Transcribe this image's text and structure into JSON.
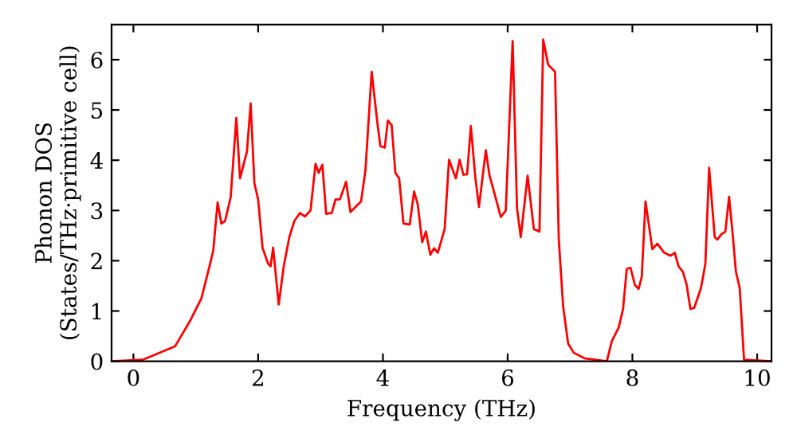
{
  "chart_data": {
    "type": "line",
    "xlabel": "Frequency (THz)",
    "ylabel": "Phonon DOS\n(States/THz·primitive cell)",
    "xlim": [
      -0.35,
      10.23
    ],
    "ylim": [
      0,
      6.7
    ],
    "xticks": [
      0,
      2,
      4,
      6,
      8,
      10
    ],
    "yticks": [
      0,
      1,
      2,
      3,
      4,
      5,
      6
    ],
    "marker": "none",
    "line_style": "solid",
    "series": [
      {
        "color": "#ff0000",
        "x": [
          -0.35,
          0.15,
          0.67,
          0.92,
          1.09,
          1.22,
          1.28,
          1.35,
          1.41,
          1.47,
          1.56,
          1.65,
          1.71,
          1.82,
          1.88,
          1.94,
          2.0,
          2.07,
          2.16,
          2.2,
          2.24,
          2.33,
          2.41,
          2.5,
          2.58,
          2.67,
          2.75,
          2.84,
          2.92,
          2.97,
          3.03,
          3.09,
          3.18,
          3.24,
          3.31,
          3.41,
          3.48,
          3.65,
          3.72,
          3.82,
          3.91,
          3.96,
          4.03,
          4.08,
          4.14,
          4.2,
          4.26,
          4.33,
          4.43,
          4.5,
          4.56,
          4.63,
          4.69,
          4.76,
          4.82,
          4.88,
          4.99,
          5.06,
          5.17,
          5.23,
          5.29,
          5.35,
          5.41,
          5.48,
          5.54,
          5.65,
          5.71,
          5.78,
          5.89,
          5.97,
          6.08,
          6.15,
          6.21,
          6.32,
          6.42,
          6.51,
          6.57,
          6.65,
          6.76,
          6.82,
          6.89,
          6.97,
          7.06,
          7.23,
          7.59,
          7.67,
          7.78,
          7.85,
          7.91,
          7.97,
          8.04,
          8.1,
          8.15,
          8.21,
          8.32,
          8.4,
          8.51,
          8.61,
          8.68,
          8.74,
          8.81,
          8.87,
          8.93,
          8.99,
          9.1,
          9.17,
          9.23,
          9.32,
          9.36,
          9.43,
          9.49,
          9.55,
          9.6,
          9.66,
          9.72,
          9.79,
          10.23
        ],
        "values": [
          0,
          0.03,
          0.3,
          0.83,
          1.25,
          1.89,
          2.2,
          3.16,
          2.74,
          2.79,
          3.27,
          4.84,
          3.64,
          4.17,
          5.13,
          3.54,
          3.22,
          2.26,
          1.94,
          1.89,
          2.26,
          1.13,
          1.89,
          2.47,
          2.79,
          2.95,
          2.88,
          3.0,
          3.93,
          3.75,
          3.91,
          2.93,
          2.95,
          3.22,
          3.22,
          3.57,
          2.97,
          3.18,
          3.8,
          5.76,
          4.76,
          4.28,
          4.25,
          4.79,
          4.7,
          3.75,
          3.64,
          2.74,
          2.72,
          3.38,
          3.11,
          2.37,
          2.58,
          2.12,
          2.25,
          2.16,
          2.63,
          4.01,
          3.64,
          4.01,
          3.71,
          3.72,
          4.68,
          3.68,
          3.07,
          4.2,
          3.69,
          3.38,
          2.87,
          3.0,
          6.37,
          3.05,
          2.47,
          3.69,
          2.63,
          2.58,
          6.4,
          5.9,
          5.76,
          2.42,
          1.09,
          0.35,
          0.17,
          0.06,
          0,
          0.4,
          0.67,
          1.04,
          1.84,
          1.86,
          1.52,
          1.44,
          1.68,
          3.18,
          2.23,
          2.34,
          2.16,
          2.1,
          2.16,
          1.89,
          1.78,
          1.52,
          1.04,
          1.06,
          1.46,
          1.94,
          3.85,
          2.47,
          2.42,
          2.53,
          2.58,
          3.27,
          2.63,
          1.78,
          1.46,
          0.03,
          0
        ]
      }
    ]
  }
}
